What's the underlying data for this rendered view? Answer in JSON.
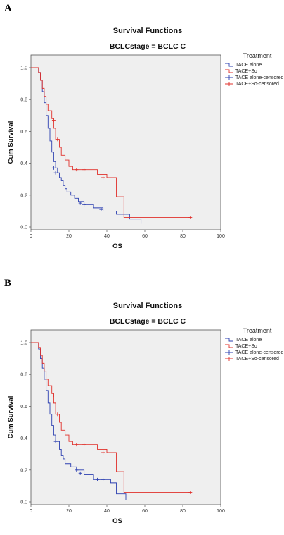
{
  "chart_data": [
    {
      "type": "line",
      "panel_label": "A",
      "title": "Survival Functions",
      "subtitle": "BCLCstage = BCLC C",
      "xlabel": "OS",
      "ylabel": "Cum Survival",
      "xlim": [
        0,
        100
      ],
      "ylim": [
        0,
        1
      ],
      "x_ticks": [
        "0",
        "20",
        "40",
        "60",
        "80",
        "100"
      ],
      "y_ticks": [
        "0.0",
        "0.2",
        "0.4",
        "0.6",
        "0.8",
        "1.0"
      ],
      "grid": false,
      "legend_title": "Treatment",
      "legend_position": "right",
      "legend": [
        {
          "label": "TACE alone",
          "color": "#2b3fb0",
          "kind": "step"
        },
        {
          "label": "TACE+So",
          "color": "#e0302b",
          "kind": "step"
        },
        {
          "label": "TACE alone-censored",
          "color": "#2b3fb0",
          "kind": "censor"
        },
        {
          "label": "TACE+So-censored",
          "color": "#e0302b",
          "kind": "censor"
        }
      ],
      "series": [
        {
          "name": "TACE alone",
          "color": "#2b3fb0",
          "steps": [
            [
              0,
              1.0
            ],
            [
              4,
              0.97
            ],
            [
              5,
              0.92
            ],
            [
              6,
              0.85
            ],
            [
              7,
              0.78
            ],
            [
              8,
              0.7
            ],
            [
              9,
              0.62
            ],
            [
              10,
              0.54
            ],
            [
              11,
              0.47
            ],
            [
              12,
              0.41
            ],
            [
              13,
              0.37
            ],
            [
              14,
              0.34
            ],
            [
              15,
              0.31
            ],
            [
              16,
              0.29
            ],
            [
              17,
              0.26
            ],
            [
              18,
              0.24
            ],
            [
              19,
              0.22
            ],
            [
              21,
              0.2
            ],
            [
              23,
              0.18
            ],
            [
              25,
              0.16
            ],
            [
              28,
              0.14
            ],
            [
              33,
              0.12
            ],
            [
              38,
              0.1
            ],
            [
              45,
              0.08
            ],
            [
              52,
              0.05
            ],
            [
              58,
              0.02
            ]
          ],
          "end_x": 58,
          "censored": [
            [
              12,
              0.37
            ],
            [
              13,
              0.34
            ],
            [
              26,
              0.15
            ],
            [
              28,
              0.14
            ],
            [
              37,
              0.11
            ]
          ]
        },
        {
          "name": "TACE+So",
          "color": "#e0302b",
          "steps": [
            [
              0,
              1.0
            ],
            [
              4,
              0.97
            ],
            [
              5,
              0.92
            ],
            [
              6,
              0.87
            ],
            [
              7,
              0.82
            ],
            [
              8,
              0.77
            ],
            [
              9,
              0.73
            ],
            [
              11,
              0.68
            ],
            [
              12,
              0.62
            ],
            [
              13,
              0.55
            ],
            [
              15,
              0.5
            ],
            [
              16,
              0.45
            ],
            [
              18,
              0.42
            ],
            [
              20,
              0.38
            ],
            [
              22,
              0.36
            ],
            [
              35,
              0.33
            ],
            [
              40,
              0.31
            ],
            [
              45,
              0.19
            ],
            [
              49,
              0.06
            ]
          ],
          "end_x": 84,
          "censored": [
            [
              12,
              0.67
            ],
            [
              14,
              0.55
            ],
            [
              24,
              0.36
            ],
            [
              28,
              0.36
            ],
            [
              38,
              0.31
            ],
            [
              84,
              0.06
            ]
          ]
        }
      ]
    },
    {
      "type": "line",
      "panel_label": "B",
      "title": "Survival Functions",
      "subtitle": "BCLCstage = BCLC C",
      "xlabel": "OS",
      "ylabel": "Cum Survival",
      "xlim": [
        0,
        100
      ],
      "ylim": [
        0,
        1
      ],
      "x_ticks": [
        "0",
        "20",
        "40",
        "60",
        "80",
        "100"
      ],
      "y_ticks": [
        "0.0",
        "0.2",
        "0.4",
        "0.6",
        "0.8",
        "1.0"
      ],
      "grid": false,
      "legend_title": "Treatment",
      "legend_position": "right",
      "legend": [
        {
          "label": "TACE alone",
          "color": "#2b3fb0",
          "kind": "step"
        },
        {
          "label": "TACE+So",
          "color": "#e0302b",
          "kind": "step"
        },
        {
          "label": "TACE alone-censored",
          "color": "#2b3fb0",
          "kind": "censor"
        },
        {
          "label": "TACE+So-censored",
          "color": "#e0302b",
          "kind": "censor"
        }
      ],
      "series": [
        {
          "name": "TACE alone",
          "color": "#2b3fb0",
          "steps": [
            [
              0,
              1.0
            ],
            [
              4,
              0.96
            ],
            [
              5,
              0.9
            ],
            [
              6,
              0.84
            ],
            [
              7,
              0.77
            ],
            [
              8,
              0.7
            ],
            [
              9,
              0.62
            ],
            [
              10,
              0.55
            ],
            [
              11,
              0.48
            ],
            [
              12,
              0.42
            ],
            [
              13,
              0.38
            ],
            [
              15,
              0.33
            ],
            [
              16,
              0.29
            ],
            [
              17,
              0.27
            ],
            [
              18,
              0.24
            ],
            [
              21,
              0.22
            ],
            [
              24,
              0.2
            ],
            [
              28,
              0.17
            ],
            [
              33,
              0.14
            ],
            [
              42,
              0.12
            ],
            [
              45,
              0.05
            ],
            [
              50,
              0.01
            ]
          ],
          "end_x": 50,
          "censored": [
            [
              13,
              0.38
            ],
            [
              24,
              0.2
            ],
            [
              26,
              0.18
            ],
            [
              35,
              0.14
            ],
            [
              38,
              0.14
            ]
          ]
        },
        {
          "name": "TACE+So",
          "color": "#e0302b",
          "steps": [
            [
              0,
              1.0
            ],
            [
              4,
              0.97
            ],
            [
              5,
              0.92
            ],
            [
              6,
              0.87
            ],
            [
              7,
              0.82
            ],
            [
              8,
              0.77
            ],
            [
              9,
              0.73
            ],
            [
              11,
              0.68
            ],
            [
              12,
              0.62
            ],
            [
              13,
              0.55
            ],
            [
              15,
              0.5
            ],
            [
              16,
              0.45
            ],
            [
              18,
              0.42
            ],
            [
              20,
              0.38
            ],
            [
              22,
              0.36
            ],
            [
              35,
              0.33
            ],
            [
              40,
              0.31
            ],
            [
              45,
              0.19
            ],
            [
              49,
              0.06
            ]
          ],
          "end_x": 84,
          "censored": [
            [
              12,
              0.67
            ],
            [
              14,
              0.55
            ],
            [
              24,
              0.36
            ],
            [
              28,
              0.36
            ],
            [
              38,
              0.31
            ],
            [
              84,
              0.06
            ]
          ]
        }
      ]
    }
  ]
}
